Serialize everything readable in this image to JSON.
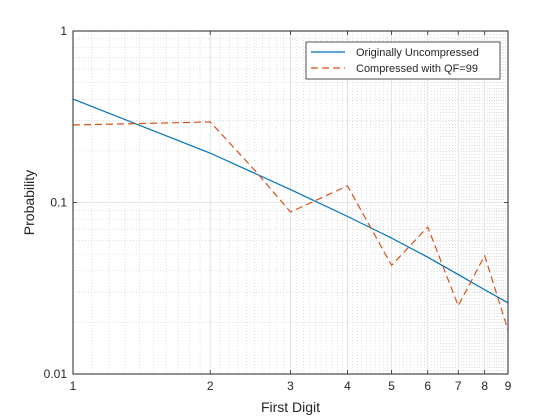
{
  "chart_data": {
    "type": "line",
    "xlabel": "First Digit",
    "ylabel": "Probability",
    "x_scale": "log",
    "y_scale": "log",
    "xlim": [
      1,
      9
    ],
    "ylim": [
      0.01,
      1
    ],
    "x_ticks": [
      1,
      2,
      3,
      4,
      5,
      6,
      7,
      8,
      9
    ],
    "x_tick_labels": [
      "1",
      "2",
      "3",
      "4",
      "5",
      "6",
      "7",
      "8",
      "9"
    ],
    "y_ticks": [
      0.01,
      0.1,
      1
    ],
    "y_tick_labels": [
      "0.01",
      "0.1",
      "1"
    ],
    "grid": true,
    "minor_grid": true,
    "legend_position": "top-right",
    "series": [
      {
        "name": "Originally Uncompressed",
        "style": "solid",
        "color": "#0072BD",
        "x": [
          1,
          2,
          3,
          4,
          5,
          6,
          7,
          8,
          9
        ],
        "y": [
          0.401,
          0.194,
          0.119,
          0.083,
          0.062,
          0.048,
          0.038,
          0.031,
          0.026
        ]
      },
      {
        "name": "Compressed with QF=99",
        "style": "dashed",
        "color": "#D95319",
        "x": [
          1,
          2,
          2.5,
          3,
          4,
          5,
          6,
          7,
          8,
          9
        ],
        "y": [
          0.283,
          0.295,
          0.155,
          0.088,
          0.125,
          0.043,
          0.072,
          0.025,
          0.049,
          0.018
        ]
      }
    ]
  }
}
